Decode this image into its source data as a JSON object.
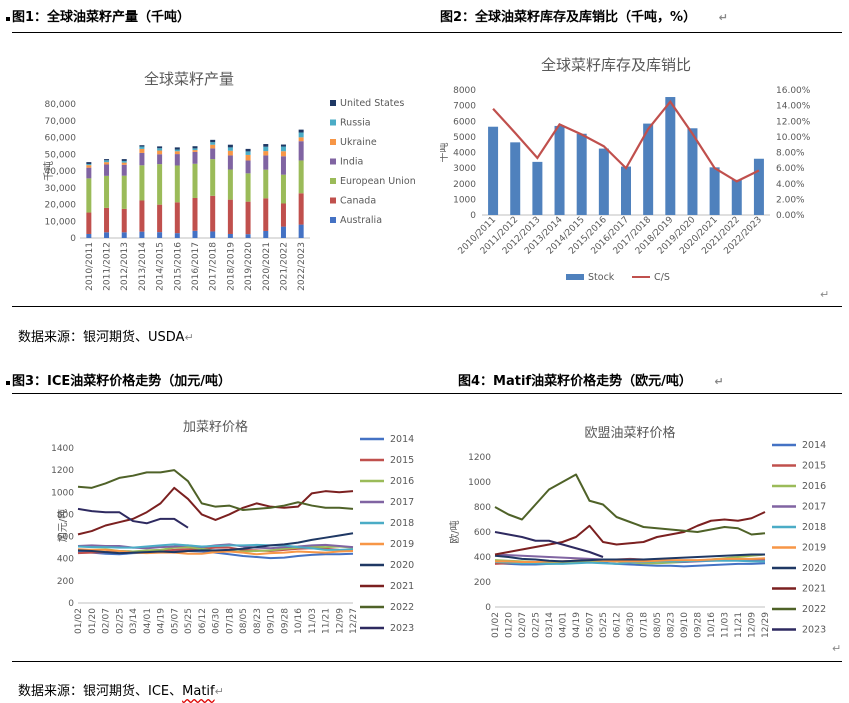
{
  "titles": {
    "fig1": "图1：全球油菜籽产量（千吨）",
    "fig2": "图2：全球油菜籽库存及库销比（千吨，%）",
    "fig3": "图3：ICE油菜籽价格走势（加元/吨）",
    "fig4": "图4：Matif油菜籽价格走势（欧元/吨）"
  },
  "para_mark": "↵",
  "sources": {
    "top_prefix": "数据来源：银河期货、USDA",
    "bottom_prefix": "数据来源：银河期货、ICE、",
    "bottom_word": "Matif"
  },
  "chart_data": [
    {
      "id": "production",
      "type": "bar",
      "stacked": true,
      "title": "全球菜籽产量",
      "ylabel": "千吨",
      "ylim": [
        0,
        80000
      ],
      "yticks": [
        "0",
        "10,000",
        "20,000",
        "30,000",
        "40,000",
        "50,000",
        "60,000",
        "70,000",
        "80,000"
      ],
      "categories": [
        "2010/2011",
        "2011/2012",
        "2012/2013",
        "2013/2014",
        "2014/2015",
        "2015/2016",
        "2016/2017",
        "2017/2018",
        "2018/2019",
        "2019/2020",
        "2020/2021",
        "2021/2022",
        "2022/2023"
      ],
      "series": [
        {
          "name": "Australia",
          "color": "#4472C4",
          "values": [
            2400,
            3400,
            3400,
            3800,
            3500,
            2900,
            4300,
            3900,
            2400,
            2300,
            4200,
            6800,
            8000
          ]
        },
        {
          "name": "Canada",
          "color": "#C0504D",
          "values": [
            12800,
            14600,
            14000,
            18600,
            16400,
            18400,
            19600,
            21300,
            20500,
            19400,
            19500,
            13800,
            18700
          ]
        },
        {
          "name": "European Union",
          "color": "#9BBB59",
          "values": [
            20400,
            19100,
            19800,
            21000,
            24200,
            22000,
            20400,
            21900,
            18000,
            16900,
            17100,
            17200,
            19600
          ]
        },
        {
          "name": "India",
          "color": "#8064A2",
          "values": [
            6400,
            6800,
            6500,
            7400,
            5900,
            6800,
            7100,
            6400,
            8400,
            7700,
            8500,
            11000,
            11500
          ]
        },
        {
          "name": "Ukraine",
          "color": "#F79646",
          "values": [
            1500,
            1400,
            1300,
            2400,
            2200,
            1700,
            1100,
            2200,
            2800,
            3300,
            2600,
            3000,
            2300
          ]
        },
        {
          "name": "Russia",
          "color": "#4BACC6",
          "values": [
            700,
            1100,
            1000,
            1400,
            1400,
            1000,
            1000,
            1500,
            2000,
            2100,
            2600,
            2800,
            2900
          ]
        },
        {
          "name": "United States",
          "color": "#1F3864",
          "values": [
            1100,
            700,
            1100,
            800,
            1100,
            1300,
            1300,
            1400,
            1600,
            1500,
            1600,
            1200,
            1700
          ]
        }
      ]
    },
    {
      "id": "stocks",
      "type": "bar+line",
      "title": "全球菜籽库存及库销比",
      "ylabel": "千吨",
      "ylim": [
        0,
        8000
      ],
      "y2lim": [
        0,
        16
      ],
      "yticks": [
        "0",
        "1000",
        "2000",
        "3000",
        "4000",
        "5000",
        "6000",
        "7000",
        "8000"
      ],
      "y2ticks": [
        "0.00%",
        "2.00%",
        "4.00%",
        "6.00%",
        "8.00%",
        "10.00%",
        "12.00%",
        "14.00%",
        "16.00%"
      ],
      "categories": [
        "2010/2011",
        "2011/2012",
        "2012/2013",
        "2013/2014",
        "2014/2015",
        "2015/2016",
        "2016/2017",
        "2017/2018",
        "2018/2019",
        "2019/2020",
        "2020/2021",
        "2021/2022",
        "2022/2023"
      ],
      "bar": {
        "name": "Stock",
        "color": "#4F81BD",
        "values": [
          5650,
          4650,
          3400,
          5700,
          5200,
          4250,
          3100,
          5850,
          7550,
          5550,
          3050,
          2250,
          3600
        ]
      },
      "line": {
        "name": "C/S",
        "color": "#C0504D",
        "values": [
          13.6,
          10.5,
          7.3,
          11.6,
          10.3,
          8.8,
          6.0,
          11.0,
          14.5,
          10.4,
          6.0,
          4.3,
          5.7
        ]
      }
    },
    {
      "id": "ice",
      "type": "line",
      "title": "加菜籽价格",
      "ylabel": "加元/吨",
      "ylim": [
        0,
        1400
      ],
      "yticks": [
        "0",
        "200",
        "400",
        "600",
        "800",
        "1000",
        "1200",
        "1400"
      ],
      "xticks": [
        "01/02",
        "01/20",
        "02/07",
        "02/25",
        "03/14",
        "04/01",
        "04/19",
        "05/07",
        "05/25",
        "06/12",
        "06/30",
        "07/18",
        "08/05",
        "08/23",
        "09/10",
        "09/28",
        "10/16",
        "11/03",
        "11/21",
        "12/09",
        "12/27"
      ],
      "series": [
        {
          "name": "2014",
          "color": "#4472C4",
          "values": [
            465,
            455,
            445,
            440,
            450,
            455,
            460,
            475,
            470,
            465,
            455,
            440,
            425,
            415,
            405,
            410,
            425,
            435,
            440,
            440,
            445
          ]
        },
        {
          "name": "2015",
          "color": "#C0504D",
          "values": [
            450,
            455,
            460,
            470,
            465,
            455,
            470,
            480,
            485,
            490,
            500,
            500,
            480,
            475,
            470,
            480,
            490,
            495,
            490,
            480,
            475
          ]
        },
        {
          "name": "2016",
          "color": "#9BBB59",
          "values": [
            475,
            480,
            485,
            470,
            465,
            475,
            480,
            500,
            505,
            490,
            470,
            465,
            465,
            470,
            475,
            490,
            500,
            510,
            505,
            510,
            500
          ]
        },
        {
          "name": "2017",
          "color": "#8064A2",
          "values": [
            515,
            520,
            515,
            515,
            500,
            495,
            505,
            510,
            520,
            505,
            520,
            530,
            510,
            500,
            495,
            505,
            510,
            520,
            525,
            515,
            505
          ]
        },
        {
          "name": "2018",
          "color": "#4BACC6",
          "values": [
            510,
            505,
            505,
            500,
            500,
            510,
            520,
            530,
            520,
            510,
            515,
            520,
            520,
            525,
            520,
            520,
            505,
            495,
            480,
            480,
            485
          ]
        },
        {
          "name": "2019",
          "color": "#F79646",
          "values": [
            485,
            480,
            480,
            470,
            455,
            450,
            455,
            455,
            445,
            445,
            460,
            465,
            455,
            440,
            450,
            455,
            465,
            460,
            455,
            465,
            470
          ]
        },
        {
          "name": "2020",
          "color": "#1F3864",
          "values": [
            475,
            470,
            460,
            450,
            455,
            460,
            465,
            460,
            470,
            475,
            475,
            480,
            490,
            505,
            520,
            530,
            545,
            570,
            590,
            610,
            630
          ]
        },
        {
          "name": "2021",
          "color": "#7B2020",
          "values": [
            620,
            650,
            700,
            730,
            760,
            820,
            900,
            1040,
            940,
            800,
            750,
            800,
            860,
            900,
            870,
            860,
            870,
            990,
            1010,
            1000,
            1010
          ]
        },
        {
          "name": "2022",
          "color": "#4F6228",
          "values": [
            1050,
            1040,
            1080,
            1130,
            1150,
            1180,
            1180,
            1200,
            1100,
            900,
            870,
            880,
            840,
            850,
            860,
            880,
            910,
            880,
            860,
            860,
            850
          ]
        },
        {
          "name": "2023",
          "color": "#2E2A60",
          "values": [
            850,
            830,
            820,
            820,
            740,
            720,
            760,
            760,
            680
          ]
        }
      ]
    },
    {
      "id": "matif",
      "type": "line",
      "title": "欧盟油菜籽价格",
      "ylabel": "欧/吨",
      "ylim": [
        0,
        1200
      ],
      "yticks": [
        "0",
        "200",
        "400",
        "600",
        "800",
        "1000",
        "1200"
      ],
      "xticks": [
        "01/02",
        "01/20",
        "02/07",
        "02/25",
        "03/14",
        "04/01",
        "04/19",
        "05/07",
        "05/25",
        "06/12",
        "06/30",
        "07/18",
        "08/05",
        "08/23",
        "09/10",
        "09/28",
        "10/16",
        "11/03",
        "11/21",
        "12/09",
        "12/29"
      ],
      "series": [
        {
          "name": "2014",
          "color": "#4472C4",
          "values": [
            350,
            345,
            340,
            340,
            345,
            350,
            355,
            360,
            355,
            345,
            340,
            335,
            330,
            330,
            325,
            330,
            335,
            340,
            345,
            345,
            350
          ]
        },
        {
          "name": "2015",
          "color": "#C0504D",
          "values": [
            345,
            350,
            355,
            355,
            360,
            365,
            370,
            375,
            380,
            380,
            385,
            380,
            375,
            370,
            365,
            370,
            375,
            380,
            385,
            380,
            375
          ]
        },
        {
          "name": "2016",
          "color": "#9BBB59",
          "values": [
            375,
            370,
            365,
            360,
            355,
            355,
            360,
            365,
            370,
            365,
            355,
            350,
            350,
            355,
            360,
            370,
            380,
            390,
            400,
            410,
            420
          ]
        },
        {
          "name": "2017",
          "color": "#8064A2",
          "values": [
            420,
            415,
            410,
            405,
            400,
            395,
            390,
            385,
            380,
            370,
            365,
            370,
            370,
            365,
            360,
            365,
            370,
            375,
            375,
            370,
            370
          ]
        },
        {
          "name": "2018",
          "color": "#4BACC6",
          "values": [
            360,
            355,
            350,
            350,
            345,
            345,
            350,
            355,
            350,
            345,
            355,
            360,
            365,
            365,
            365,
            370,
            370,
            370,
            370,
            365,
            365
          ]
        },
        {
          "name": "2019",
          "color": "#F79646",
          "values": [
            365,
            365,
            360,
            360,
            365,
            365,
            370,
            375,
            370,
            365,
            365,
            365,
            370,
            375,
            375,
            375,
            380,
            385,
            385,
            385,
            390
          ]
        },
        {
          "name": "2020",
          "color": "#1F3864",
          "values": [
            410,
            400,
            385,
            380,
            370,
            365,
            370,
            375,
            380,
            380,
            380,
            380,
            385,
            390,
            395,
            400,
            405,
            410,
            415,
            420,
            420
          ]
        },
        {
          "name": "2021",
          "color": "#7B2020",
          "values": [
            420,
            440,
            460,
            480,
            500,
            520,
            560,
            650,
            520,
            500,
            510,
            520,
            560,
            580,
            600,
            650,
            690,
            700,
            690,
            710,
            760
          ]
        },
        {
          "name": "2022",
          "color": "#4F6228",
          "values": [
            800,
            740,
            700,
            820,
            940,
            1000,
            1060,
            850,
            820,
            720,
            680,
            640,
            630,
            620,
            610,
            600,
            620,
            640,
            630,
            580,
            590
          ]
        },
        {
          "name": "2023",
          "color": "#2E2A60",
          "values": [
            600,
            580,
            560,
            530,
            530,
            500,
            470,
            440,
            400
          ]
        }
      ]
    }
  ]
}
